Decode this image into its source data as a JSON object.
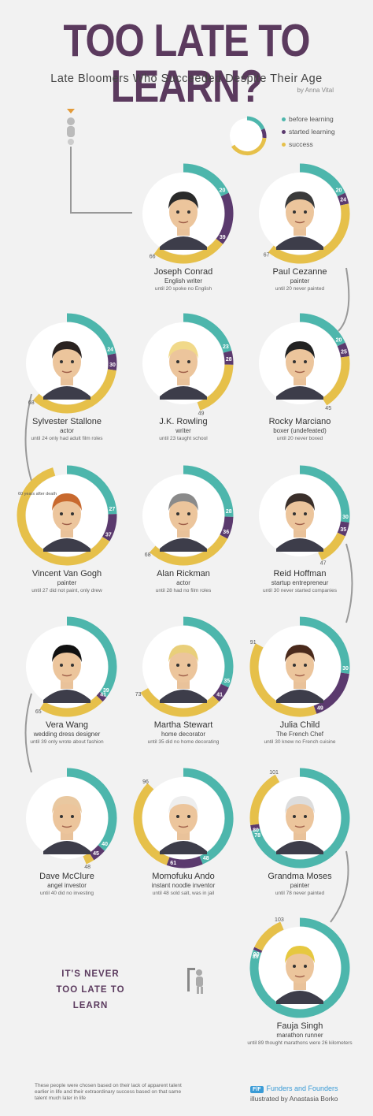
{
  "header": {
    "title": "TOO LATE TO LEARN?",
    "subtitle": "Late Bloomers Who Succeeded Despite Their Age",
    "author": "by Anna Vital"
  },
  "legend": {
    "items": [
      {
        "label": "before learning",
        "color": "#4db6ac"
      },
      {
        "label": "started learning",
        "color": "#5b3a6e"
      },
      {
        "label": "success",
        "color": "#e6c04a"
      }
    ]
  },
  "people": [
    {
      "name": "Joseph Conrad",
      "role": "English writer",
      "note": "until 20 spoke no English",
      "before": 20,
      "started": 39,
      "success": 66,
      "hair": "#2a2a2a"
    },
    {
      "name": "Paul Cezanne",
      "role": "painter",
      "note": "until 20 never painted",
      "before": 20,
      "started": 24,
      "success": 67,
      "hair": "#3a3a3a"
    },
    {
      "name": "Sylvester Stallone",
      "role": "actor",
      "note": "until 24 only had adult film roles",
      "before": 24,
      "started": 30,
      "success": 68,
      "hair": "#2a2220"
    },
    {
      "name": "J.K. Rowling",
      "role": "writer",
      "note": "until 23 taught school",
      "before": 23,
      "started": 28,
      "success": 49,
      "hair": "#f1d98a"
    },
    {
      "name": "Rocky Marciano",
      "role": "boxer (undefeated)",
      "note": "until 20 never boxed",
      "before": 20,
      "started": 25,
      "success": 45,
      "hair": "#222"
    },
    {
      "name": "Vincent Van Gogh",
      "role": "painter",
      "note": "until 27 did not paint, only drew",
      "before": 27,
      "started": 37,
      "success": "60 years after death",
      "hair": "#c8692e"
    },
    {
      "name": "Alan Rickman",
      "role": "actor",
      "note": "until 28 had no film roles",
      "before": 28,
      "started": 36,
      "success": 68,
      "hair": "#8a8a8a"
    },
    {
      "name": "Reid Hoffman",
      "role": "startup entrepreneur",
      "note": "until 30 never started companies",
      "before": 30,
      "started": 35,
      "success": 47,
      "hair": "#3a2f2a"
    },
    {
      "name": "Vera Wang",
      "role": "wedding dress designer",
      "note": "until 39 only wrote about fashion",
      "before": 39,
      "started": 41,
      "success": 65,
      "hair": "#111"
    },
    {
      "name": "Martha Stewart",
      "role": "home decorator",
      "note": "until 35 did no home decorating",
      "before": 35,
      "started": 41,
      "success": 73,
      "hair": "#e9cf7a"
    },
    {
      "name": "Julia Child",
      "role": "The French Chef",
      "note": "until 30 knew no French cuisine",
      "before": 30,
      "started": 49,
      "success": 91,
      "hair": "#4a2a1c"
    },
    {
      "name": "Dave McClure",
      "role": "angel investor",
      "note": "until 40 did no investing",
      "before": 40,
      "started": 45,
      "success": 48,
      "hair": "#e9c8a0"
    },
    {
      "name": "Momofuku Ando",
      "role": "instant noodle inventor",
      "note": "until 48 sold salt, was in jail",
      "before": 48,
      "started": 61,
      "success": 96,
      "hair": "#eee"
    },
    {
      "name": "Grandma Moses",
      "role": "painter",
      "note": "until 78 never painted",
      "before": 78,
      "started": 80,
      "success": 101,
      "hair": "#ddd"
    },
    {
      "name": "Fauja Singh",
      "role": "marathon runner",
      "note": "until 89 thought marathons were 26 kilometers",
      "before": 89,
      "started": 90,
      "success": 103,
      "hair": "#e6c840"
    }
  ],
  "slogan": {
    "line1": "IT'S NEVER",
    "line2": "TOO LATE TO LEARN"
  },
  "footer": {
    "note": "These people were chosen based on their lack of apparent talent earlier in life and their extraordinary success based on that same talent much later in life",
    "brand_badge": "F/F",
    "brand": "Funders and Founders",
    "illustrator": "illustrated by Anastasia Borko"
  },
  "colors": {
    "teal": "#4db6ac",
    "purple": "#5b3a6e",
    "gold": "#e6c04a",
    "bronze": "#c99a3a",
    "title": "#5b3a5e"
  }
}
